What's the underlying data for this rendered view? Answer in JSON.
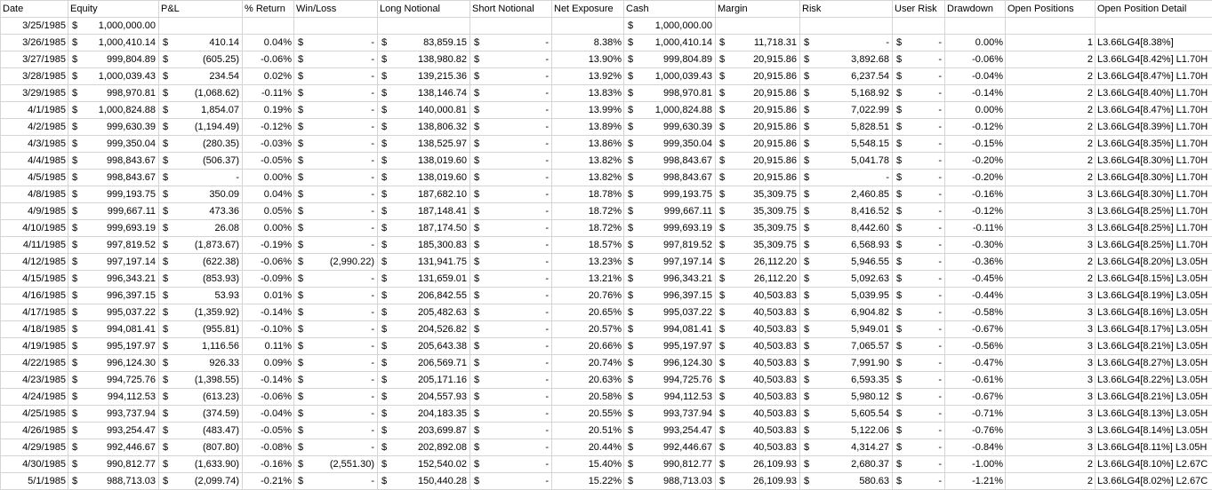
{
  "headers": [
    "Date",
    "Equity",
    "P&L",
    "% Return",
    "Win/Loss",
    "Long Notional",
    "Short Notional",
    "Net Exposure",
    "Cash",
    "Margin",
    "Risk",
    "User Risk",
    "Drawdown",
    "Open Positions",
    "Open Position Detail"
  ],
  "currency_symbol": "$",
  "rows": [
    [
      "3/25/1985",
      "1,000,000.00",
      "",
      "",
      "",
      "",
      "",
      "",
      "1,000,000.00",
      "",
      "",
      "",
      "",
      "",
      ""
    ],
    [
      "3/26/1985",
      "1,000,410.14",
      "410.14",
      "0.04%",
      "-",
      "83,859.15",
      "-",
      "8.38%",
      "1,000,410.14",
      "11,718.31",
      "-",
      "-",
      "0.00%",
      "1",
      "L3.66LG4[8.38%]"
    ],
    [
      "3/27/1985",
      "999,804.89",
      "(605.25)",
      "-0.06%",
      "-",
      "138,980.82",
      "-",
      "13.90%",
      "999,804.89",
      "20,915.86",
      "3,892.68",
      "-",
      "-0.06%",
      "2",
      "L3.66LG4[8.42%] L1.70H"
    ],
    [
      "3/28/1985",
      "1,000,039.43",
      "234.54",
      "0.02%",
      "-",
      "139,215.36",
      "-",
      "13.92%",
      "1,000,039.43",
      "20,915.86",
      "6,237.54",
      "-",
      "-0.04%",
      "2",
      "L3.66LG4[8.47%] L1.70H"
    ],
    [
      "3/29/1985",
      "998,970.81",
      "(1,068.62)",
      "-0.11%",
      "-",
      "138,146.74",
      "-",
      "13.83%",
      "998,970.81",
      "20,915.86",
      "5,168.92",
      "-",
      "-0.14%",
      "2",
      "L3.66LG4[8.40%] L1.70H"
    ],
    [
      "4/1/1985",
      "1,000,824.88",
      "1,854.07",
      "0.19%",
      "-",
      "140,000.81",
      "-",
      "13.99%",
      "1,000,824.88",
      "20,915.86",
      "7,022.99",
      "-",
      "0.00%",
      "2",
      "L3.66LG4[8.47%] L1.70H"
    ],
    [
      "4/2/1985",
      "999,630.39",
      "(1,194.49)",
      "-0.12%",
      "-",
      "138,806.32",
      "-",
      "13.89%",
      "999,630.39",
      "20,915.86",
      "5,828.51",
      "-",
      "-0.12%",
      "2",
      "L3.66LG4[8.39%] L1.70H"
    ],
    [
      "4/3/1985",
      "999,350.04",
      "(280.35)",
      "-0.03%",
      "-",
      "138,525.97",
      "-",
      "13.86%",
      "999,350.04",
      "20,915.86",
      "5,548.15",
      "-",
      "-0.15%",
      "2",
      "L3.66LG4[8.35%] L1.70H"
    ],
    [
      "4/4/1985",
      "998,843.67",
      "(506.37)",
      "-0.05%",
      "-",
      "138,019.60",
      "-",
      "13.82%",
      "998,843.67",
      "20,915.86",
      "5,041.78",
      "-",
      "-0.20%",
      "2",
      "L3.66LG4[8.30%] L1.70H"
    ],
    [
      "4/5/1985",
      "998,843.67",
      "-",
      "0.00%",
      "-",
      "138,019.60",
      "-",
      "13.82%",
      "998,843.67",
      "20,915.86",
      "-",
      "-",
      "-0.20%",
      "2",
      "L3.66LG4[8.30%] L1.70H"
    ],
    [
      "4/8/1985",
      "999,193.75",
      "350.09",
      "0.04%",
      "-",
      "187,682.10",
      "-",
      "18.78%",
      "999,193.75",
      "35,309.75",
      "2,460.85",
      "-",
      "-0.16%",
      "3",
      "L3.66LG4[8.30%] L1.70H"
    ],
    [
      "4/9/1985",
      "999,667.11",
      "473.36",
      "0.05%",
      "-",
      "187,148.41",
      "-",
      "18.72%",
      "999,667.11",
      "35,309.75",
      "8,416.52",
      "-",
      "-0.12%",
      "3",
      "L3.66LG4[8.25%] L1.70H"
    ],
    [
      "4/10/1985",
      "999,693.19",
      "26.08",
      "0.00%",
      "-",
      "187,174.50",
      "-",
      "18.72%",
      "999,693.19",
      "35,309.75",
      "8,442.60",
      "-",
      "-0.11%",
      "3",
      "L3.66LG4[8.25%] L1.70H"
    ],
    [
      "4/11/1985",
      "997,819.52",
      "(1,873.67)",
      "-0.19%",
      "-",
      "185,300.83",
      "-",
      "18.57%",
      "997,819.52",
      "35,309.75",
      "6,568.93",
      "-",
      "-0.30%",
      "3",
      "L3.66LG4[8.25%] L1.70H"
    ],
    [
      "4/12/1985",
      "997,197.14",
      "(622.38)",
      "-0.06%",
      "(2,990.22)",
      "131,941.75",
      "-",
      "13.23%",
      "997,197.14",
      "26,112.20",
      "5,946.55",
      "-",
      "-0.36%",
      "2",
      "L3.66LG4[8.20%] L3.05H"
    ],
    [
      "4/15/1985",
      "996,343.21",
      "(853.93)",
      "-0.09%",
      "-",
      "131,659.01",
      "-",
      "13.21%",
      "996,343.21",
      "26,112.20",
      "5,092.63",
      "-",
      "-0.45%",
      "2",
      "L3.66LG4[8.15%] L3.05H"
    ],
    [
      "4/16/1985",
      "996,397.15",
      "53.93",
      "0.01%",
      "-",
      "206,842.55",
      "-",
      "20.76%",
      "996,397.15",
      "40,503.83",
      "5,039.95",
      "-",
      "-0.44%",
      "3",
      "L3.66LG4[8.19%] L3.05H"
    ],
    [
      "4/17/1985",
      "995,037.22",
      "(1,359.92)",
      "-0.14%",
      "-",
      "205,482.63",
      "-",
      "20.65%",
      "995,037.22",
      "40,503.83",
      "6,904.82",
      "-",
      "-0.58%",
      "3",
      "L3.66LG4[8.16%] L3.05H"
    ],
    [
      "4/18/1985",
      "994,081.41",
      "(955.81)",
      "-0.10%",
      "-",
      "204,526.82",
      "-",
      "20.57%",
      "994,081.41",
      "40,503.83",
      "5,949.01",
      "-",
      "-0.67%",
      "3",
      "L3.66LG4[8.17%] L3.05H"
    ],
    [
      "4/19/1985",
      "995,197.97",
      "1,116.56",
      "0.11%",
      "-",
      "205,643.38",
      "-",
      "20.66%",
      "995,197.97",
      "40,503.83",
      "7,065.57",
      "-",
      "-0.56%",
      "3",
      "L3.66LG4[8.21%] L3.05H"
    ],
    [
      "4/22/1985",
      "996,124.30",
      "926.33",
      "0.09%",
      "-",
      "206,569.71",
      "-",
      "20.74%",
      "996,124.30",
      "40,503.83",
      "7,991.90",
      "-",
      "-0.47%",
      "3",
      "L3.66LG4[8.27%] L3.05H"
    ],
    [
      "4/23/1985",
      "994,725.76",
      "(1,398.55)",
      "-0.14%",
      "-",
      "205,171.16",
      "-",
      "20.63%",
      "994,725.76",
      "40,503.83",
      "6,593.35",
      "-",
      "-0.61%",
      "3",
      "L3.66LG4[8.22%] L3.05H"
    ],
    [
      "4/24/1985",
      "994,112.53",
      "(613.23)",
      "-0.06%",
      "-",
      "204,557.93",
      "-",
      "20.58%",
      "994,112.53",
      "40,503.83",
      "5,980.12",
      "-",
      "-0.67%",
      "3",
      "L3.66LG4[8.21%] L3.05H"
    ],
    [
      "4/25/1985",
      "993,737.94",
      "(374.59)",
      "-0.04%",
      "-",
      "204,183.35",
      "-",
      "20.55%",
      "993,737.94",
      "40,503.83",
      "5,605.54",
      "-",
      "-0.71%",
      "3",
      "L3.66LG4[8.13%] L3.05H"
    ],
    [
      "4/26/1985",
      "993,254.47",
      "(483.47)",
      "-0.05%",
      "-",
      "203,699.87",
      "-",
      "20.51%",
      "993,254.47",
      "40,503.83",
      "5,122.06",
      "-",
      "-0.76%",
      "3",
      "L3.66LG4[8.14%] L3.05H"
    ],
    [
      "4/29/1985",
      "992,446.67",
      "(807.80)",
      "-0.08%",
      "-",
      "202,892.08",
      "-",
      "20.44%",
      "992,446.67",
      "40,503.83",
      "4,314.27",
      "-",
      "-0.84%",
      "3",
      "L3.66LG4[8.11%] L3.05H"
    ],
    [
      "4/30/1985",
      "990,812.77",
      "(1,633.90)",
      "-0.16%",
      "(2,551.30)",
      "152,540.02",
      "-",
      "15.40%",
      "990,812.77",
      "26,109.93",
      "2,680.37",
      "-",
      "-1.00%",
      "2",
      "L3.66LG4[8.10%] L2.67C"
    ],
    [
      "5/1/1985",
      "988,713.03",
      "(2,099.74)",
      "-0.21%",
      "-",
      "150,440.28",
      "-",
      "15.22%",
      "988,713.03",
      "26,109.93",
      "580.63",
      "-",
      "-1.21%",
      "2",
      "L3.66LG4[8.02%] L2.67C"
    ]
  ]
}
